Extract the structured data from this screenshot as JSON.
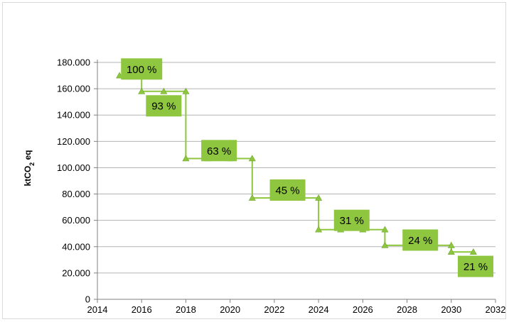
{
  "chart_data": {
    "type": "line",
    "title": "",
    "xlabel": "",
    "ylabel": "ktCO2 eq",
    "ylabel_parts": {
      "main": "ktCO",
      "sub": "2",
      "tail": " eq"
    },
    "xlim": [
      2014,
      2032
    ],
    "ylim": [
      0,
      180000
    ],
    "x_ticks": [
      "2014",
      "2016",
      "2018",
      "2020",
      "2022",
      "2024",
      "2026",
      "2028",
      "2030",
      "2032"
    ],
    "y_ticks": [
      "0",
      "20.000",
      "40.000",
      "60.000",
      "80.000",
      "100.000",
      "120.000",
      "140.000",
      "160.000",
      "180.000"
    ],
    "grid": "horizontal",
    "step_line": true,
    "series": [
      {
        "points": [
          {
            "x": 2015,
            "y": 170000
          },
          {
            "x": 2016,
            "y": 170000
          },
          {
            "x": 2016,
            "y": 158000
          },
          {
            "x": 2017,
            "y": 158000
          },
          {
            "x": 2018,
            "y": 158000
          },
          {
            "x": 2018,
            "y": 107000
          },
          {
            "x": 2019,
            "y": 107000
          },
          {
            "x": 2020,
            "y": 107000
          },
          {
            "x": 2021,
            "y": 107000
          },
          {
            "x": 2021,
            "y": 77000
          },
          {
            "x": 2022,
            "y": 77000
          },
          {
            "x": 2023,
            "y": 77000
          },
          {
            "x": 2024,
            "y": 77000
          },
          {
            "x": 2024,
            "y": 53000
          },
          {
            "x": 2025,
            "y": 53000
          },
          {
            "x": 2026,
            "y": 53000
          },
          {
            "x": 2027,
            "y": 53000
          },
          {
            "x": 2027,
            "y": 41000
          },
          {
            "x": 2028,
            "y": 41000
          },
          {
            "x": 2029,
            "y": 41000
          },
          {
            "x": 2030,
            "y": 41000
          },
          {
            "x": 2030,
            "y": 36000
          },
          {
            "x": 2031,
            "y": 36000
          }
        ]
      }
    ],
    "annotations": [
      {
        "text": "100 %",
        "x": 2016.0,
        "y": 175000
      },
      {
        "text": "93 %",
        "x": 2017.0,
        "y": 147000
      },
      {
        "text": "63 %",
        "x": 2019.5,
        "y": 113000
      },
      {
        "text": "45 %",
        "x": 2022.6,
        "y": 83000
      },
      {
        "text": "31 %",
        "x": 2025.5,
        "y": 60000
      },
      {
        "text": "24 %",
        "x": 2028.6,
        "y": 45000
      },
      {
        "text": "21 %",
        "x": 2031.1,
        "y": 25000
      }
    ],
    "colors": {
      "line": "#8ec63f",
      "marker": "#8ec63f",
      "annotation_fill": "#8ec63f",
      "grid": "#b3b3b3",
      "axis": "#808080"
    }
  }
}
